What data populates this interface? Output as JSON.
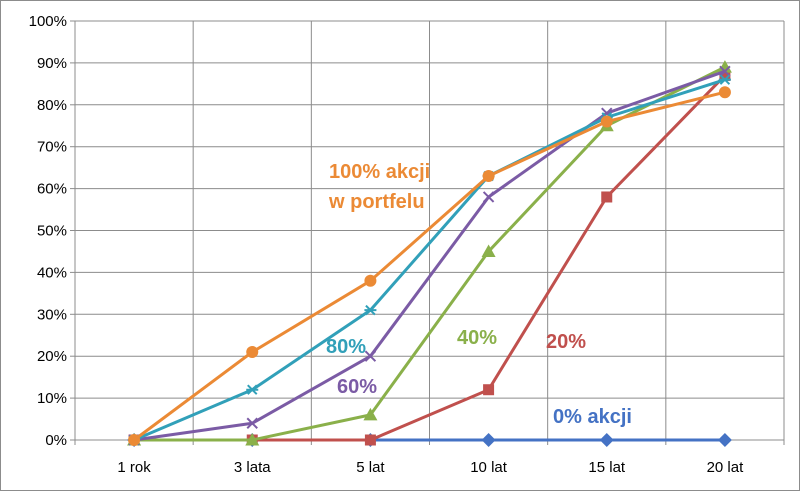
{
  "chart_data": {
    "type": "line",
    "title": "",
    "xlabel": "",
    "ylabel": "",
    "categories": [
      "1 rok",
      "3 lata",
      "5 lat",
      "10 lat",
      "15 lat",
      "20 lat"
    ],
    "ylim": [
      0,
      100
    ],
    "yticks": [
      "0%",
      "10%",
      "20%",
      "30%",
      "40%",
      "50%",
      "60%",
      "70%",
      "80%",
      "90%",
      "100%"
    ],
    "grid": true,
    "legend": "none",
    "series": [
      {
        "values": [
          0,
          0,
          0,
          0,
          0,
          0
        ],
        "color": "#4472C4",
        "marker": "diamond"
      },
      {
        "values": [
          0,
          0,
          0,
          12,
          58,
          87
        ],
        "color": "#C0504D",
        "marker": "square"
      },
      {
        "values": [
          0,
          0,
          6,
          45,
          75,
          89
        ],
        "color": "#8AB04A",
        "marker": "triangle"
      },
      {
        "values": [
          0,
          4,
          20,
          58,
          78,
          88
        ],
        "color": "#7B5BA5",
        "marker": "x"
      },
      {
        "values": [
          0,
          12,
          31,
          63,
          77,
          86
        ],
        "color": "#31A0B9",
        "marker": "star"
      },
      {
        "values": [
          0,
          21,
          38,
          63,
          76,
          83
        ],
        "color": "#EB8A35",
        "marker": "circle"
      }
    ],
    "annotations": [
      {
        "lines": [
          "100% akcji",
          "w portfelu"
        ],
        "color": "#EB8A35"
      },
      {
        "lines": [
          "80%"
        ],
        "color": "#31A0B9"
      },
      {
        "lines": [
          "60%"
        ],
        "color": "#7B5BA5"
      },
      {
        "lines": [
          "40%"
        ],
        "color": "#8AB04A"
      },
      {
        "lines": [
          "20%"
        ],
        "color": "#C0504D"
      },
      {
        "lines": [
          "0% akcji"
        ],
        "color": "#4472C4"
      }
    ]
  }
}
